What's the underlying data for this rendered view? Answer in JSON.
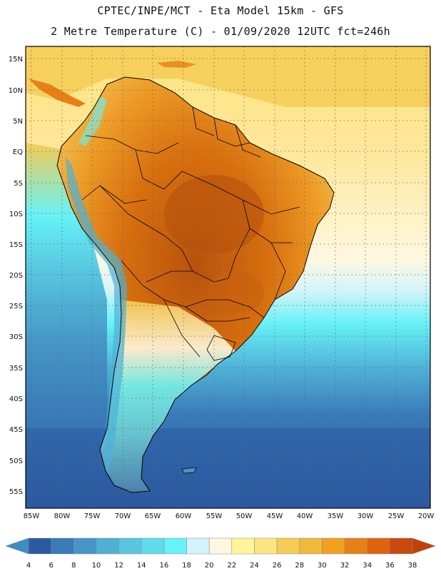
{
  "title_line1": "CPTEC/INPE/MCT -   Eta Model 15km - GFS",
  "title_line2": "2 Metre Temperature (C) - 01/09/2020 12UTC fct=246h",
  "map": {
    "region": "South America",
    "variable": "2 Metre Temperature",
    "units": "C",
    "lat_labels": [
      "15N",
      "10N",
      "5N",
      "EQ",
      "5S",
      "10S",
      "15S",
      "20S",
      "25S",
      "30S",
      "35S",
      "40S",
      "45S",
      "50S",
      "55S"
    ],
    "lon_labels": [
      "85W",
      "80W",
      "75W",
      "70W",
      "65W",
      "60W",
      "55W",
      "50W",
      "45W",
      "40W",
      "35W",
      "30W",
      "25W",
      "20W"
    ]
  },
  "colorbar": {
    "labels": [
      "4",
      "6",
      "8",
      "10",
      "12",
      "14",
      "16",
      "18",
      "20",
      "22",
      "24",
      "26",
      "28",
      "30",
      "32",
      "34",
      "36",
      "38"
    ],
    "colors": [
      "#2b5aa0",
      "#3a7ab8",
      "#4596c6",
      "#4fb0d6",
      "#58c6e0",
      "#5fdcea",
      "#66f2f7",
      "#d2f4fa",
      "#fff8e0",
      "#fef59a",
      "#fce47e",
      "#f5cc55",
      "#f0b93a",
      "#f2a020",
      "#e88018",
      "#df640f",
      "#c84a0c"
    ],
    "under_color": "#3c8dc4",
    "over_color": "#c0420a"
  },
  "colors": {
    "ocean_cold": "#2b5aa0",
    "ocean_mid": "#4fb0d6",
    "ocean_warm": "#66f2f7",
    "tropical_ocean": "#fce47e",
    "land_hot": "#c8600e",
    "land_warm": "#f0a830"
  }
}
